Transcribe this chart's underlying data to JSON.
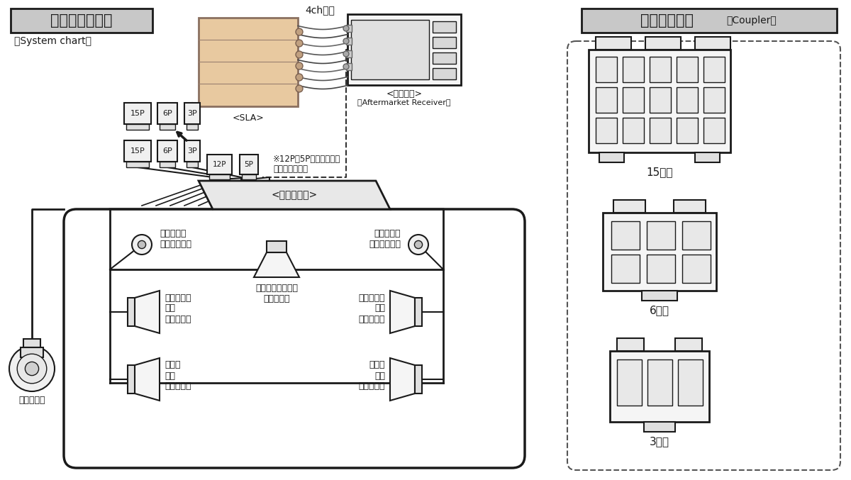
{
  "bg_color": "#ffffff",
  "lc": "#1a1a1a",
  "system_title": "システム構成図",
  "system_sub": "（System chart）",
  "coupler_title": "使用カプラー",
  "coupler_sub": "（Coupler）",
  "sla_label": "<SLA>",
  "new_deck_label": "<新デッキ>",
  "aftermarket_label": "（Aftermarket Receiver）",
  "amp_label": "<純正アンプ>",
  "ch4_label": "4ch入力",
  "note_line1": "※12P・5Pのカプラーは",
  "note_line2": "使用しません。",
  "con_top": [
    "15P",
    "6P",
    "3P"
  ],
  "con_bot": [
    "15P",
    "6P",
    "3P"
  ],
  "con_amp": [
    "12P",
    "5P"
  ],
  "lbl_lft": "左フロント\nトゥイーター",
  "lbl_rft": "右フロント\nトゥイーター",
  "lbl_lfd": "左フロント\nドア\nスピーカー",
  "lbl_rfd": "右フロント\nドア\nスピーカー",
  "lbl_lrd": "左リア\nドア\nスピーカー",
  "lbl_rrd": "右リア\nドア\nスピーカー",
  "lbl_fc": "フロントセンター\nスピーカー",
  "lbl_wf": "ウーファー",
  "pin15": "15ピン",
  "pin6": "6ピン",
  "pin3": "3ピン",
  "sla_fill": "#e8c9a0",
  "title_fill": "#c8c8c8",
  "conn_fill": "#f0f0f0",
  "amp_fill": "#e8e8e8"
}
